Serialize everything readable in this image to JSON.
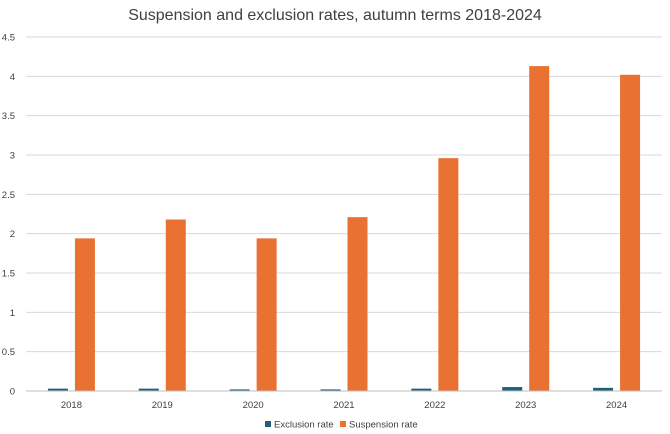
{
  "chart_data": {
    "type": "bar",
    "title": "Suspension and exclusion rates, autumn terms 2018-2024",
    "xlabel": "",
    "ylabel": "",
    "categories": [
      "2018",
      "2019",
      "2020",
      "2021",
      "2022",
      "2023",
      "2024"
    ],
    "ylim": [
      0,
      4.5
    ],
    "yticks": [
      "0",
      "0.5",
      "1",
      "1.5",
      "2",
      "2.5",
      "3",
      "3.5",
      "4",
      "4.5"
    ],
    "grid": true,
    "legend_position": "bottom",
    "series": [
      {
        "name": "Exclusion rate",
        "color": "#1f5f7a",
        "values": [
          0.03,
          0.03,
          0.02,
          0.02,
          0.03,
          0.05,
          0.04
        ]
      },
      {
        "name": "Suspension rate",
        "color": "#e97132",
        "values": [
          1.94,
          2.18,
          1.94,
          2.21,
          2.96,
          4.13,
          4.02
        ]
      }
    ]
  }
}
